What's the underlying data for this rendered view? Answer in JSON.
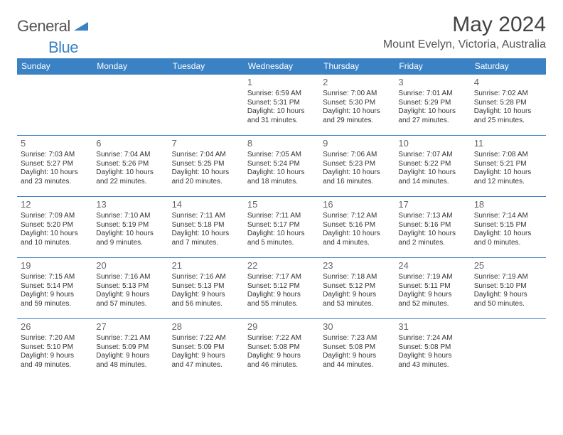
{
  "brand": {
    "part1": "General",
    "part2": "Blue"
  },
  "title": "May 2024",
  "location": "Mount Evelyn, Victoria, Australia",
  "colors": {
    "accent": "#3b82c4",
    "text": "#333333",
    "muted": "#666666",
    "bg": "#ffffff"
  },
  "weekdays": [
    "Sunday",
    "Monday",
    "Tuesday",
    "Wednesday",
    "Thursday",
    "Friday",
    "Saturday"
  ],
  "weeks": [
    [
      null,
      null,
      null,
      {
        "d": "1",
        "sr": "Sunrise: 6:59 AM",
        "ss": "Sunset: 5:31 PM",
        "dl1": "Daylight: 10 hours",
        "dl2": "and 31 minutes."
      },
      {
        "d": "2",
        "sr": "Sunrise: 7:00 AM",
        "ss": "Sunset: 5:30 PM",
        "dl1": "Daylight: 10 hours",
        "dl2": "and 29 minutes."
      },
      {
        "d": "3",
        "sr": "Sunrise: 7:01 AM",
        "ss": "Sunset: 5:29 PM",
        "dl1": "Daylight: 10 hours",
        "dl2": "and 27 minutes."
      },
      {
        "d": "4",
        "sr": "Sunrise: 7:02 AM",
        "ss": "Sunset: 5:28 PM",
        "dl1": "Daylight: 10 hours",
        "dl2": "and 25 minutes."
      }
    ],
    [
      {
        "d": "5",
        "sr": "Sunrise: 7:03 AM",
        "ss": "Sunset: 5:27 PM",
        "dl1": "Daylight: 10 hours",
        "dl2": "and 23 minutes."
      },
      {
        "d": "6",
        "sr": "Sunrise: 7:04 AM",
        "ss": "Sunset: 5:26 PM",
        "dl1": "Daylight: 10 hours",
        "dl2": "and 22 minutes."
      },
      {
        "d": "7",
        "sr": "Sunrise: 7:04 AM",
        "ss": "Sunset: 5:25 PM",
        "dl1": "Daylight: 10 hours",
        "dl2": "and 20 minutes."
      },
      {
        "d": "8",
        "sr": "Sunrise: 7:05 AM",
        "ss": "Sunset: 5:24 PM",
        "dl1": "Daylight: 10 hours",
        "dl2": "and 18 minutes."
      },
      {
        "d": "9",
        "sr": "Sunrise: 7:06 AM",
        "ss": "Sunset: 5:23 PM",
        "dl1": "Daylight: 10 hours",
        "dl2": "and 16 minutes."
      },
      {
        "d": "10",
        "sr": "Sunrise: 7:07 AM",
        "ss": "Sunset: 5:22 PM",
        "dl1": "Daylight: 10 hours",
        "dl2": "and 14 minutes."
      },
      {
        "d": "11",
        "sr": "Sunrise: 7:08 AM",
        "ss": "Sunset: 5:21 PM",
        "dl1": "Daylight: 10 hours",
        "dl2": "and 12 minutes."
      }
    ],
    [
      {
        "d": "12",
        "sr": "Sunrise: 7:09 AM",
        "ss": "Sunset: 5:20 PM",
        "dl1": "Daylight: 10 hours",
        "dl2": "and 10 minutes."
      },
      {
        "d": "13",
        "sr": "Sunrise: 7:10 AM",
        "ss": "Sunset: 5:19 PM",
        "dl1": "Daylight: 10 hours",
        "dl2": "and 9 minutes."
      },
      {
        "d": "14",
        "sr": "Sunrise: 7:11 AM",
        "ss": "Sunset: 5:18 PM",
        "dl1": "Daylight: 10 hours",
        "dl2": "and 7 minutes."
      },
      {
        "d": "15",
        "sr": "Sunrise: 7:11 AM",
        "ss": "Sunset: 5:17 PM",
        "dl1": "Daylight: 10 hours",
        "dl2": "and 5 minutes."
      },
      {
        "d": "16",
        "sr": "Sunrise: 7:12 AM",
        "ss": "Sunset: 5:16 PM",
        "dl1": "Daylight: 10 hours",
        "dl2": "and 4 minutes."
      },
      {
        "d": "17",
        "sr": "Sunrise: 7:13 AM",
        "ss": "Sunset: 5:16 PM",
        "dl1": "Daylight: 10 hours",
        "dl2": "and 2 minutes."
      },
      {
        "d": "18",
        "sr": "Sunrise: 7:14 AM",
        "ss": "Sunset: 5:15 PM",
        "dl1": "Daylight: 10 hours",
        "dl2": "and 0 minutes."
      }
    ],
    [
      {
        "d": "19",
        "sr": "Sunrise: 7:15 AM",
        "ss": "Sunset: 5:14 PM",
        "dl1": "Daylight: 9 hours",
        "dl2": "and 59 minutes."
      },
      {
        "d": "20",
        "sr": "Sunrise: 7:16 AM",
        "ss": "Sunset: 5:13 PM",
        "dl1": "Daylight: 9 hours",
        "dl2": "and 57 minutes."
      },
      {
        "d": "21",
        "sr": "Sunrise: 7:16 AM",
        "ss": "Sunset: 5:13 PM",
        "dl1": "Daylight: 9 hours",
        "dl2": "and 56 minutes."
      },
      {
        "d": "22",
        "sr": "Sunrise: 7:17 AM",
        "ss": "Sunset: 5:12 PM",
        "dl1": "Daylight: 9 hours",
        "dl2": "and 55 minutes."
      },
      {
        "d": "23",
        "sr": "Sunrise: 7:18 AM",
        "ss": "Sunset: 5:12 PM",
        "dl1": "Daylight: 9 hours",
        "dl2": "and 53 minutes."
      },
      {
        "d": "24",
        "sr": "Sunrise: 7:19 AM",
        "ss": "Sunset: 5:11 PM",
        "dl1": "Daylight: 9 hours",
        "dl2": "and 52 minutes."
      },
      {
        "d": "25",
        "sr": "Sunrise: 7:19 AM",
        "ss": "Sunset: 5:10 PM",
        "dl1": "Daylight: 9 hours",
        "dl2": "and 50 minutes."
      }
    ],
    [
      {
        "d": "26",
        "sr": "Sunrise: 7:20 AM",
        "ss": "Sunset: 5:10 PM",
        "dl1": "Daylight: 9 hours",
        "dl2": "and 49 minutes."
      },
      {
        "d": "27",
        "sr": "Sunrise: 7:21 AM",
        "ss": "Sunset: 5:09 PM",
        "dl1": "Daylight: 9 hours",
        "dl2": "and 48 minutes."
      },
      {
        "d": "28",
        "sr": "Sunrise: 7:22 AM",
        "ss": "Sunset: 5:09 PM",
        "dl1": "Daylight: 9 hours",
        "dl2": "and 47 minutes."
      },
      {
        "d": "29",
        "sr": "Sunrise: 7:22 AM",
        "ss": "Sunset: 5:08 PM",
        "dl1": "Daylight: 9 hours",
        "dl2": "and 46 minutes."
      },
      {
        "d": "30",
        "sr": "Sunrise: 7:23 AM",
        "ss": "Sunset: 5:08 PM",
        "dl1": "Daylight: 9 hours",
        "dl2": "and 44 minutes."
      },
      {
        "d": "31",
        "sr": "Sunrise: 7:24 AM",
        "ss": "Sunset: 5:08 PM",
        "dl1": "Daylight: 9 hours",
        "dl2": "and 43 minutes."
      },
      null
    ]
  ]
}
